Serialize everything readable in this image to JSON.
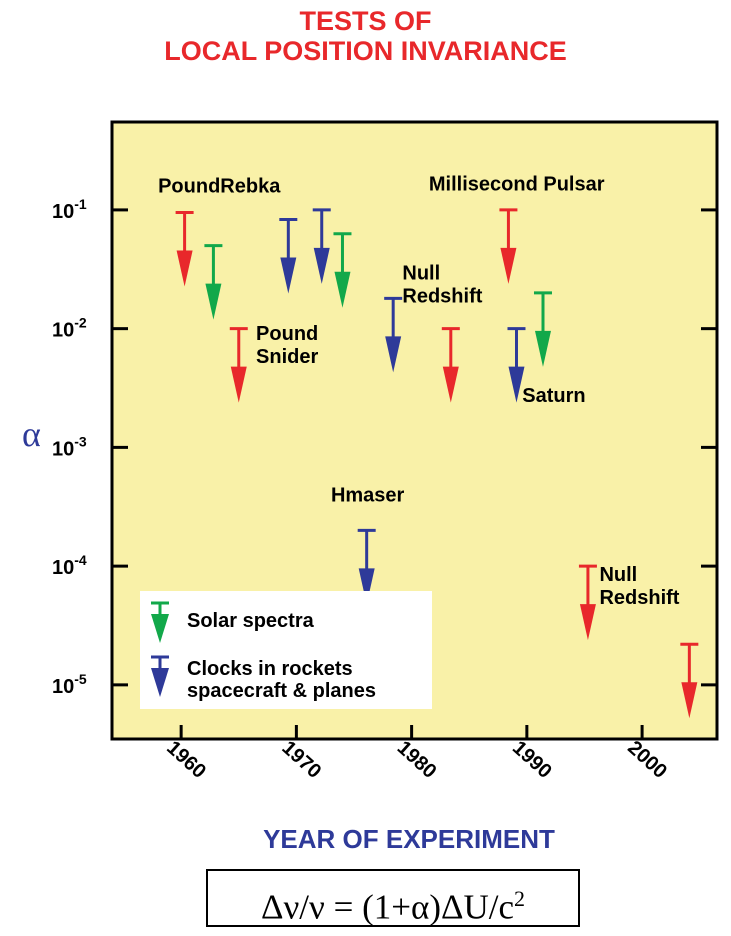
{
  "title": {
    "line1": "TESTS OF",
    "line2": "LOCAL POSITION INVARIANCE"
  },
  "formula": {
    "main": "Δν/ν = (1+α)ΔU/c",
    "superscript": "2"
  },
  "colors": {
    "background": "#f9f1a8",
    "title": "#e8282b",
    "red": "#e8282b",
    "green": "#12a84a",
    "blue": "#2e3a99",
    "xlabel": "#2e3a99",
    "ylabel": "#2e3a99"
  },
  "chart_data": {
    "type": "scatter",
    "title": "TESTS OF LOCAL POSITION INVARIANCE",
    "xlabel": "YEAR OF EXPERIMENT",
    "ylabel": "α",
    "x_ticks": [
      "1960",
      "1970",
      "1980",
      "1990",
      "2000"
    ],
    "y_ticks": [
      {
        "base": "10",
        "exp": "-1",
        "value": 0.1
      },
      {
        "base": "10",
        "exp": "-2",
        "value": 0.01
      },
      {
        "base": "10",
        "exp": "-3",
        "value": 0.001
      },
      {
        "base": "10",
        "exp": "-4",
        "value": 0.0001
      },
      {
        "base": "10",
        "exp": "-5",
        "value": 1e-05
      }
    ],
    "xlim": [
      1954,
      2006.5
    ],
    "ylim": [
      3.5e-06,
      0.55
    ],
    "yscale": "log",
    "grid": false,
    "marker": "upper-limit arrow",
    "legend": {
      "placement": "lower-left",
      "entries": [
        {
          "label": "Solar spectra",
          "color": "green"
        },
        {
          "label": "Clocks in rockets",
          "label2": "spacecraft & planes",
          "color": "blue"
        }
      ]
    },
    "series": [
      {
        "color": "red",
        "points": [
          {
            "x": 1960.3,
            "y": 0.095
          },
          {
            "x": 1965.0,
            "y": 0.01
          },
          {
            "x": 1983.4,
            "y": 0.01
          },
          {
            "x": 1988.4,
            "y": 0.1
          },
          {
            "x": 1995.3,
            "y": 0.0001
          },
          {
            "x": 2004.1,
            "y": 2.2e-05
          }
        ]
      },
      {
        "color": "green",
        "points": [
          {
            "x": 1962.8,
            "y": 0.05
          },
          {
            "x": 1974.0,
            "y": 0.063
          },
          {
            "x": 1991.4,
            "y": 0.02
          }
        ]
      },
      {
        "color": "blue",
        "points": [
          {
            "x": 1969.3,
            "y": 0.083
          },
          {
            "x": 1972.2,
            "y": 0.1
          },
          {
            "x": 1978.4,
            "y": 0.018
          },
          {
            "x": 1976.1,
            "y": 0.0002
          },
          {
            "x": 1989.1,
            "y": 0.01
          }
        ]
      }
    ],
    "annotations": [
      {
        "lines": [
          "PoundRebka"
        ],
        "x": 1958.0,
        "y": 0.14
      },
      {
        "lines": [
          "Pound",
          "Snider"
        ],
        "x": 1966.5,
        "y": 0.008
      },
      {
        "lines": [
          "Millisecond Pulsar"
        ],
        "x": 1981.5,
        "y": 0.145
      },
      {
        "lines": [
          "Null",
          "Redshift"
        ],
        "x": 1979.2,
        "y": 0.026
      },
      {
        "lines": [
          "Saturn"
        ],
        "x": 1989.6,
        "y": 0.0024
      },
      {
        "lines": [
          "Hmaser"
        ],
        "x": 1973.0,
        "y": 0.00035
      },
      {
        "lines": [
          "Null",
          "Redshift"
        ],
        "x": 1996.3,
        "y": 7.5e-05
      }
    ]
  }
}
